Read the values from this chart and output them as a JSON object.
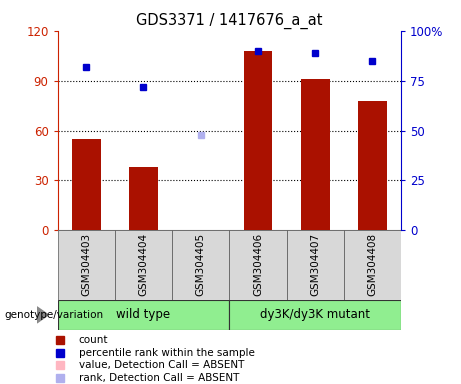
{
  "title": "GDS3371 / 1417676_a_at",
  "samples": [
    "GSM304403",
    "GSM304404",
    "GSM304405",
    "GSM304406",
    "GSM304407",
    "GSM304408"
  ],
  "group_labels": [
    "wild type",
    "dy3K/dy3K mutant"
  ],
  "bar_values": [
    55,
    38,
    null,
    108,
    91,
    78
  ],
  "bar_colors_present": "#AA1100",
  "bar_color_absent": "#FFB6C1",
  "percentile_values": [
    82,
    72,
    null,
    90,
    89,
    85
  ],
  "percentile_color": "#0000CC",
  "rank_absent_value": 48,
  "rank_absent_index": 2,
  "absent_indices": [
    2
  ],
  "ylim_left": [
    0,
    120
  ],
  "ylim_right": [
    0,
    100
  ],
  "yticks_left": [
    0,
    30,
    60,
    90,
    120
  ],
  "yticks_right": [
    0,
    25,
    50,
    75,
    100
  ],
  "ytick_labels_left": [
    "0",
    "30",
    "60",
    "90",
    "120"
  ],
  "ytick_labels_right": [
    "0",
    "25",
    "50",
    "75",
    "100%"
  ],
  "left_axis_color": "#CC2200",
  "right_axis_color": "#0000CC",
  "plot_bg_color": "#D8D8D8",
  "group_color": "#90EE90",
  "bar_width": 0.5,
  "genotype_label": "genotype/variation",
  "legend_entries": [
    "count",
    "percentile rank within the sample",
    "value, Detection Call = ABSENT",
    "rank, Detection Call = ABSENT"
  ],
  "legend_colors": [
    "#AA1100",
    "#0000CC",
    "#FFB6C1",
    "#B0B0EE"
  ]
}
